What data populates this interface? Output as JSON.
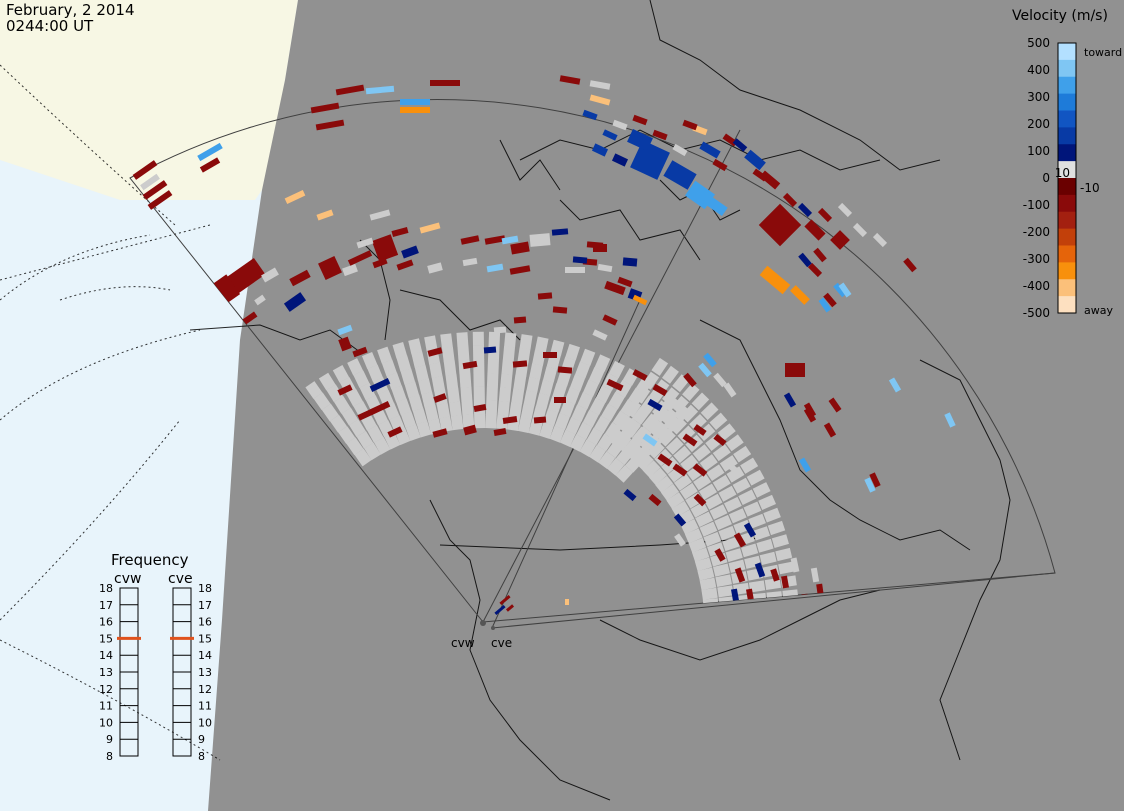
{
  "header": {
    "date": "February, 2 2014",
    "time": "0244:00 UT"
  },
  "velocity_scale": {
    "title": "Velocity (m/s)",
    "ticks": [
      "500",
      "400",
      "300",
      "200",
      "100",
      "10",
      "0",
      "-10",
      "-100",
      "-200",
      "-300",
      "-400",
      "-500"
    ],
    "toward_label": "toward",
    "away_label": "away",
    "colors_top_to_bottom": [
      "#b3e0ff",
      "#7fc6f3",
      "#3fa0ea",
      "#1e7bd9",
      "#1155c2",
      "#083aa5",
      "#00157a",
      "#e0e0e0",
      "#6a0000",
      "#8a0a0a",
      "#a32010",
      "#c2400a",
      "#e5640a",
      "#f8900c",
      "#fbc07a",
      "#fde0c0"
    ]
  },
  "frequency_panel": {
    "title": "Frequency",
    "radars": [
      "cvw",
      "cve"
    ],
    "ticks": [
      "18",
      "17",
      "16",
      "15",
      "14",
      "13",
      "12",
      "11",
      "10",
      "9",
      "8"
    ],
    "current_value": 15,
    "marker_color": "#e0521d"
  },
  "radar_sites": [
    {
      "name": "cvw"
    },
    {
      "name": "cve"
    }
  ],
  "colors": {
    "land": "#919191",
    "ocean": "#e8f4fb",
    "ice": "#f7f7e4",
    "ground_scatter": "#cccccc"
  }
}
